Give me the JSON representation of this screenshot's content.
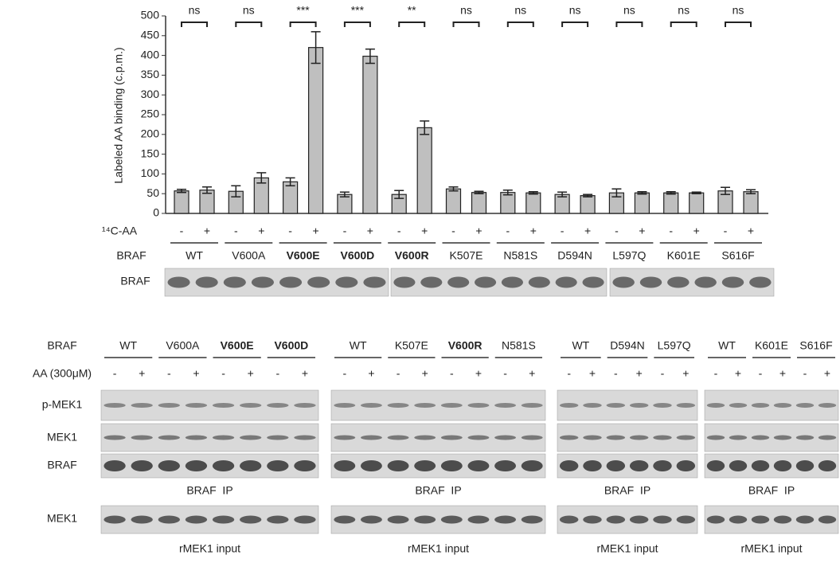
{
  "chart_data": {
    "type": "bar",
    "y_label": "Labeled AA binding (c.p.m.)",
    "row_labels": [
      "¹⁴C-AA",
      "BRAF"
    ],
    "blot_label": "BRAF",
    "categories": [
      "WT",
      "V600A",
      "V600E",
      "V600D",
      "V600R",
      "K507E",
      "N581S",
      "D594N",
      "L597Q",
      "K601E",
      "S616F"
    ],
    "bold_categories": [
      2,
      3,
      4
    ],
    "significance": [
      "ns",
      "ns",
      "***",
      "***",
      "**",
      "ns",
      "ns",
      "ns",
      "ns",
      "ns",
      "ns"
    ],
    "series": [
      {
        "name": "-",
        "color": "#bfbfbf",
        "values": [
          57,
          56,
          80,
          48,
          48,
          62,
          53,
          48,
          52,
          52,
          57
        ],
        "errors": [
          4,
          14,
          10,
          6,
          10,
          5,
          6,
          6,
          10,
          3,
          9
        ]
      },
      {
        "name": "+",
        "color": "#bfbfbf",
        "values": [
          59,
          90,
          420,
          398,
          217,
          53,
          52,
          45,
          52,
          52,
          55
        ],
        "errors": [
          8,
          13,
          40,
          18,
          17,
          3,
          3,
          3,
          3,
          2,
          5
        ]
      }
    ],
    "ylim": [
      0,
      500
    ],
    "yticks": [
      0,
      50,
      100,
      150,
      200,
      250,
      300,
      350,
      400,
      450,
      500
    ],
    "grid": false
  },
  "blots": {
    "row_labels": [
      "BRAF",
      "AA (300μM)",
      "p-MEK1",
      "MEK1",
      "BRAF",
      "MEK1"
    ],
    "aa": [
      "-",
      "+"
    ],
    "groups": [
      {
        "mutants": [
          "WT",
          "V600A",
          "V600E",
          "V600D"
        ],
        "bold": [
          2,
          3
        ],
        "ip_label": "BRAF  IP",
        "input_label": "rMEK1 input"
      },
      {
        "mutants": [
          "WT",
          "K507E",
          "V600R",
          "N581S"
        ],
        "bold": [
          2
        ],
        "ip_label": "BRAF  IP",
        "input_label": "rMEK1 input"
      },
      {
        "mutants": [
          "WT",
          "D594N",
          "L597Q"
        ],
        "bold": [],
        "ip_label": "BRAF  IP",
        "input_label": "rMEK1 input"
      },
      {
        "mutants": [
          "WT",
          "K601E",
          "S616F"
        ],
        "bold": [],
        "ip_label": "BRAF  IP",
        "input_label": "rMEK1 input"
      }
    ]
  }
}
